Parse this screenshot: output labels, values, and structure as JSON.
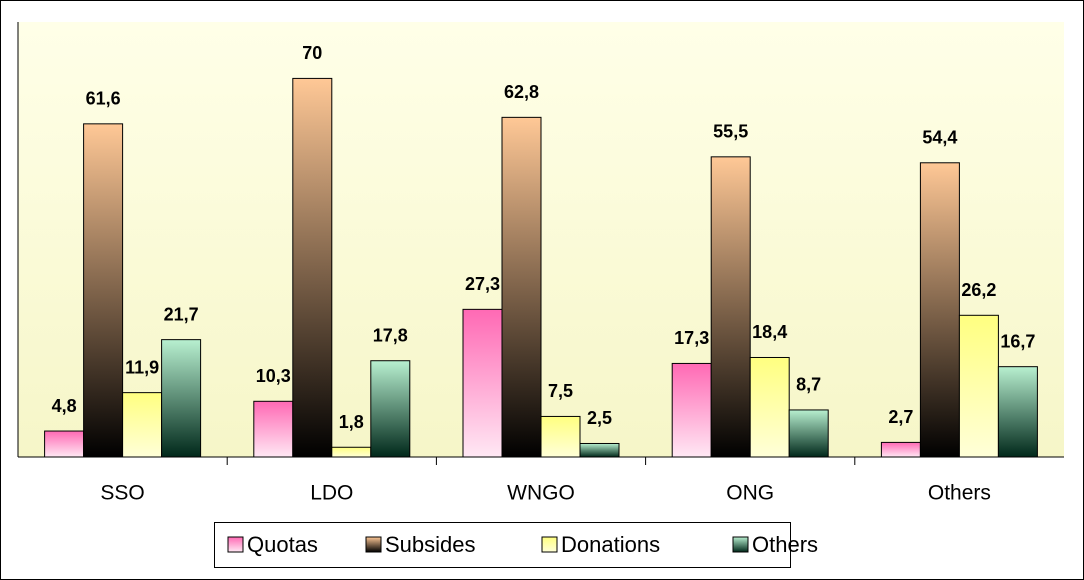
{
  "chart_data": {
    "type": "bar",
    "categories": [
      "SSO",
      "LDO",
      "WNGO",
      "ONG",
      "Others"
    ],
    "series": [
      {
        "name": "Quotas",
        "color": "#ff69b4",
        "values": [
          4.8,
          10.3,
          27.3,
          17.3,
          2.7
        ],
        "value_labels": [
          "4,8",
          "10,3",
          "27,3",
          "17,3",
          "2,7"
        ]
      },
      {
        "name": "Subsides",
        "color": "#ffc896",
        "values": [
          61.6,
          70,
          62.8,
          55.5,
          54.4
        ],
        "value_labels": [
          "61,6",
          "70",
          "62,8",
          "55,5",
          "54,4"
        ]
      },
      {
        "name": "Donations",
        "color": "#ffff80",
        "values": [
          11.9,
          1.8,
          7.5,
          18.4,
          26.2
        ],
        "value_labels": [
          "11,9",
          "1,8",
          "7,5",
          "18,4",
          "26,2"
        ]
      },
      {
        "name": "Others",
        "color": "#b8f0d0",
        "values": [
          21.7,
          17.8,
          2.5,
          8.7,
          16.7
        ],
        "value_labels": [
          "21,7",
          "17,8",
          "2,5",
          "8,7",
          "16,7"
        ]
      }
    ],
    "legend": "bottom"
  }
}
